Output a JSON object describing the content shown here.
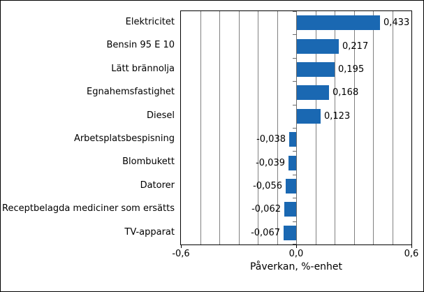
{
  "chart_data": {
    "type": "bar",
    "orientation": "horizontal",
    "categories": [
      "Elektricitet",
      "Bensin 95 E 10",
      "Lätt brännolja",
      "Egnahemsfastighet",
      "Diesel",
      "Arbetsplatsbespisning",
      "Blombukett",
      "Datorer",
      "Receptbelagda mediciner som ersätts",
      "TV-apparat"
    ],
    "values": [
      0.433,
      0.217,
      0.195,
      0.168,
      0.123,
      -0.038,
      -0.039,
      -0.056,
      -0.062,
      -0.067
    ],
    "value_labels": [
      "0,433",
      "0,217",
      "0,195",
      "0,168",
      "0,123",
      "-0,038",
      "-0,039",
      "-0,056",
      "-0,062",
      "-0,067"
    ],
    "title": "",
    "xlabel": "Påverkan, %-enhet",
    "ylabel": "",
    "xlim": [
      -0.6,
      0.6
    ],
    "grid_step": 0.1,
    "grid": true,
    "legend": false,
    "x_ticks": [
      {
        "value": -0.6,
        "label": "-0,6"
      },
      {
        "value": 0.0,
        "label": "0,0"
      },
      {
        "value": 0.6,
        "label": "0,6"
      }
    ],
    "bar_color": "#1A68B2",
    "gridline_color": "#808080",
    "axis_color": "#000000",
    "background_color": "#ffffff"
  }
}
